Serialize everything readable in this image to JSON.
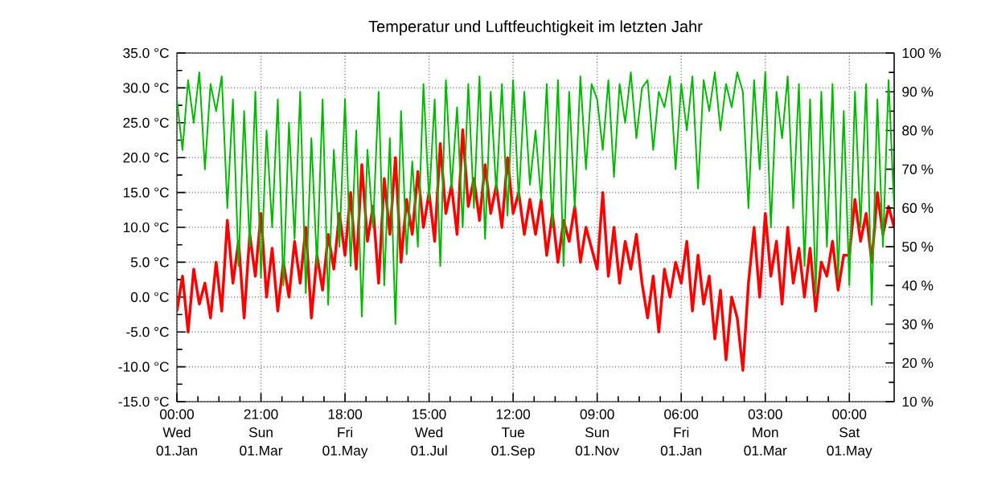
{
  "chart_data": {
    "type": "line",
    "title": "Temperatur und Luftfeuchtigkeit im letzten Jahr",
    "categories": [
      "00:00 Wed 01.Jan",
      null,
      null,
      null,
      null,
      null,
      null,
      null,
      null,
      null,
      null,
      null,
      null,
      null,
      null,
      "21:00 Sun 01.Mar",
      null,
      null,
      null,
      null,
      null,
      null,
      null,
      null,
      null,
      null,
      null,
      null,
      null,
      null,
      "18:00 Fri 01.May",
      null,
      null,
      null,
      null,
      null,
      null,
      null,
      null,
      null,
      null,
      null,
      null,
      null,
      null,
      "15:00 Wed 01.Jul",
      null,
      null,
      null,
      null,
      null,
      null,
      null,
      null,
      null,
      null,
      null,
      null,
      null,
      null,
      "12:00 Tue 01.Sep",
      null,
      null,
      null,
      null,
      null,
      null,
      null,
      null,
      null,
      null,
      null,
      null,
      null,
      null,
      "09:00 Sun 01.Nov",
      null,
      null,
      null,
      null,
      null,
      null,
      null,
      null,
      null,
      null,
      null,
      null,
      null,
      null,
      "06:00 Fri 01.Jan",
      null,
      null,
      null,
      null,
      null,
      null,
      null,
      null,
      null,
      null,
      null,
      null,
      null,
      null,
      "03:00 Mon 01.Mar",
      null,
      null,
      null,
      null,
      null,
      null,
      null,
      null,
      null,
      null,
      null,
      null,
      null,
      null,
      "00:00 Sat 01.May",
      null,
      null,
      null,
      null,
      null,
      null,
      null,
      null
    ],
    "ylim": [
      -15,
      35
    ],
    "yticks": [
      {
        "value": -15,
        "label": "-15.0 °C"
      },
      {
        "value": -10,
        "label": "-10.0 °C"
      },
      {
        "value": -5,
        "label": "-5.0 °C"
      },
      {
        "value": 0,
        "label": "0.0 °C"
      },
      {
        "value": 5,
        "label": "5.0 °C"
      },
      {
        "value": 10,
        "label": "10.0 °C"
      },
      {
        "value": 15,
        "label": "15.0 °C"
      },
      {
        "value": 20,
        "label": "20.0 °C"
      },
      {
        "value": 25,
        "label": "25.0 °C"
      },
      {
        "value": 30,
        "label": "30.0 °C"
      },
      {
        "value": 35,
        "label": "35.0 °C"
      }
    ],
    "y2lim": [
      10,
      100
    ],
    "y2ticks": [
      {
        "value": 10,
        "label": "10 %"
      },
      {
        "value": 20,
        "label": "20 %"
      },
      {
        "value": 30,
        "label": "30 %"
      },
      {
        "value": 40,
        "label": "40 %"
      },
      {
        "value": 50,
        "label": "50 %"
      },
      {
        "value": 60,
        "label": "60 %"
      },
      {
        "value": 70,
        "label": "70 %"
      },
      {
        "value": 80,
        "label": "80 %"
      },
      {
        "value": 90,
        "label": "90 %"
      },
      {
        "value": 100,
        "label": "100 %"
      }
    ],
    "grid": true,
    "series": [
      {
        "color": "#ff0000",
        "axis": "y",
        "values": [
          -2,
          3,
          -5,
          4,
          -1,
          2,
          -3,
          5,
          -2,
          11,
          2,
          8,
          -3,
          9,
          3,
          12,
          0,
          7,
          -2,
          5,
          0,
          8,
          2,
          10,
          -3,
          6,
          1,
          9,
          4,
          12,
          6,
          15,
          4,
          19,
          8,
          13,
          2,
          17,
          9,
          20,
          5,
          14,
          9,
          18,
          10,
          15,
          8,
          22,
          12,
          16,
          9,
          24,
          13,
          17,
          11,
          19,
          12,
          16,
          10,
          20,
          12,
          15,
          9,
          14,
          9,
          14,
          6,
          12,
          5,
          11,
          8,
          13,
          5,
          10,
          7,
          4,
          15,
          3,
          10,
          2,
          8,
          4,
          9,
          2,
          -3,
          3,
          -5,
          4,
          0,
          5,
          2,
          8,
          -2,
          6,
          -1,
          3,
          -6,
          1,
          -9,
          0,
          -3,
          -10.5,
          2,
          10,
          0,
          12,
          3,
          8,
          -1,
          10,
          2,
          7,
          0,
          7,
          -2,
          5,
          3,
          8,
          1,
          6,
          6,
          14,
          8,
          12,
          5,
          15,
          9,
          13,
          10
        ]
      },
      {
        "color": "#00bb00",
        "axis": "y2",
        "values": [
          88,
          75,
          93,
          82,
          95,
          70,
          92,
          85,
          94,
          60,
          88,
          45,
          85,
          50,
          90,
          42,
          80,
          55,
          88,
          40,
          82,
          52,
          90,
          38,
          78,
          45,
          88,
          35,
          75,
          50,
          88,
          45,
          80,
          32,
          75,
          55,
          90,
          40,
          78,
          30,
          85,
          48,
          72,
          50,
          92,
          62,
          88,
          45,
          93,
          65,
          86,
          55,
          92,
          60,
          94,
          52,
          90,
          64,
          92,
          58,
          93,
          62,
          90,
          66,
          80,
          62,
          92,
          55,
          93,
          45,
          90,
          60,
          94,
          70,
          92,
          88,
          75,
          93,
          68,
          92,
          82,
          95,
          78,
          91,
          93,
          75,
          90,
          86,
          94,
          70,
          92,
          80,
          94,
          65,
          93,
          85,
          95,
          80,
          92,
          86,
          95,
          90,
          60,
          93,
          70,
          95,
          55,
          90,
          78,
          94,
          60,
          92,
          45,
          88,
          38,
          90,
          50,
          92,
          42,
          85,
          40,
          90,
          55,
          92,
          35,
          88,
          50,
          93,
          60
        ]
      }
    ]
  }
}
